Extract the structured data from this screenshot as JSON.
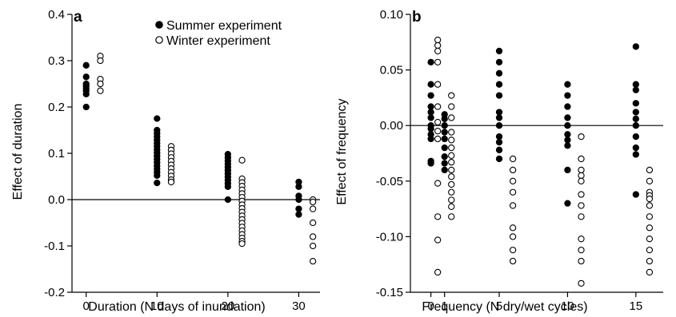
{
  "chart_data": [
    {
      "type": "scatter",
      "panel": "a",
      "xlabel": "Duration (N days of inundation)",
      "ylabel": "Effect of duration",
      "xlim": [
        -2,
        33
      ],
      "ylim": [
        -0.2,
        0.4
      ],
      "x_ticks": [
        0,
        10,
        20,
        30
      ],
      "x_tick_labels": [
        "0",
        "10",
        "20",
        "30"
      ],
      "y_ticks": [
        -0.2,
        -0.1,
        0.0,
        0.1,
        0.2,
        0.3,
        0.4
      ],
      "y_tick_labels": [
        "-0.2",
        "-0.1",
        "0.0",
        "0.1",
        "0.2",
        "0.3",
        "0.4"
      ],
      "reference_line_y": 0,
      "legend_position": "top-right",
      "series": [
        {
          "name": "Summer experiment",
          "marker": "filled",
          "points": [
            [
              0,
              0.29
            ],
            [
              0,
              0.265
            ],
            [
              0,
              0.25
            ],
            [
              0,
              0.245
            ],
            [
              0,
              0.24
            ],
            [
              0,
              0.235
            ],
            [
              0,
              0.228
            ],
            [
              0,
              0.2
            ],
            [
              10,
              0.175
            ],
            [
              10,
              0.15
            ],
            [
              10,
              0.143
            ],
            [
              10,
              0.136
            ],
            [
              10,
              0.129
            ],
            [
              10,
              0.122
            ],
            [
              10,
              0.115
            ],
            [
              10,
              0.108
            ],
            [
              10,
              0.101
            ],
            [
              10,
              0.094
            ],
            [
              10,
              0.087
            ],
            [
              10,
              0.08
            ],
            [
              10,
              0.073
            ],
            [
              10,
              0.066
            ],
            [
              10,
              0.059
            ],
            [
              10,
              0.052
            ],
            [
              10,
              0.036
            ],
            [
              20,
              0.098
            ],
            [
              20,
              0.091
            ],
            [
              20,
              0.084
            ],
            [
              20,
              0.077
            ],
            [
              20,
              0.07
            ],
            [
              20,
              0.063
            ],
            [
              20,
              0.056
            ],
            [
              20,
              0.049
            ],
            [
              20,
              0.042
            ],
            [
              20,
              0.035
            ],
            [
              20,
              0.028
            ],
            [
              20,
              0.0
            ],
            [
              30,
              0.038
            ],
            [
              30,
              0.028
            ],
            [
              30,
              0.008
            ],
            [
              30,
              0.0
            ],
            [
              30,
              -0.02
            ],
            [
              30,
              -0.032
            ]
          ]
        },
        {
          "name": "Winter experiment",
          "marker": "open",
          "points": [
            [
              2,
              0.31
            ],
            [
              2,
              0.3
            ],
            [
              2,
              0.26
            ],
            [
              2,
              0.25
            ],
            [
              2,
              0.235
            ],
            [
              12,
              0.115
            ],
            [
              12,
              0.107
            ],
            [
              12,
              0.099
            ],
            [
              12,
              0.091
            ],
            [
              12,
              0.083
            ],
            [
              12,
              0.075
            ],
            [
              12,
              0.067
            ],
            [
              12,
              0.059
            ],
            [
              12,
              0.051
            ],
            [
              12,
              0.043
            ],
            [
              12,
              0.038
            ],
            [
              22,
              0.085
            ],
            [
              22,
              0.045
            ],
            [
              22,
              0.037
            ],
            [
              22,
              0.029
            ],
            [
              22,
              0.021
            ],
            [
              22,
              0.013
            ],
            [
              22,
              0.005
            ],
            [
              22,
              -0.003
            ],
            [
              22,
              -0.011
            ],
            [
              22,
              -0.019
            ],
            [
              22,
              -0.027
            ],
            [
              22,
              -0.035
            ],
            [
              22,
              -0.043
            ],
            [
              22,
              -0.051
            ],
            [
              22,
              -0.059
            ],
            [
              22,
              -0.067
            ],
            [
              22,
              -0.075
            ],
            [
              22,
              -0.083
            ],
            [
              22,
              -0.09
            ],
            [
              22,
              -0.095
            ],
            [
              32,
              0.0
            ],
            [
              32,
              -0.005
            ],
            [
              32,
              -0.02
            ],
            [
              32,
              -0.05
            ],
            [
              32,
              -0.08
            ],
            [
              32,
              -0.1
            ],
            [
              32,
              -0.133
            ]
          ]
        }
      ]
    },
    {
      "type": "scatter",
      "panel": "b",
      "xlabel": "Frequency (N dry/wet cycles)",
      "ylabel": "Effect of frequency",
      "xlim": [
        -1.5,
        17
      ],
      "ylim": [
        -0.15,
        0.1
      ],
      "x_ticks": [
        0,
        1,
        5,
        10,
        15
      ],
      "x_tick_labels": [
        "0",
        "1",
        "5",
        "10",
        "15"
      ],
      "y_ticks": [
        -0.15,
        -0.1,
        -0.05,
        0.0,
        0.05,
        0.1
      ],
      "y_tick_labels": [
        "-0.15",
        "-0.10",
        "-0.05",
        "0.00",
        "0.05",
        "0.10"
      ],
      "reference_line_y": 0,
      "series": [
        {
          "name": "Summer experiment",
          "marker": "filled",
          "points": [
            [
              0,
              0.057
            ],
            [
              0,
              0.037
            ],
            [
              0,
              0.027
            ],
            [
              0,
              0.017
            ],
            [
              0,
              0.012
            ],
            [
              0,
              0.007
            ],
            [
              0,
              0.0
            ],
            [
              0,
              -0.003
            ],
            [
              0,
              -0.008
            ],
            [
              0,
              -0.012
            ],
            [
              0,
              -0.032
            ],
            [
              0,
              -0.034
            ],
            [
              1,
              0.01
            ],
            [
              1,
              0.006
            ],
            [
              1,
              0.0
            ],
            [
              1,
              -0.006
            ],
            [
              1,
              -0.012
            ],
            [
              1,
              -0.02
            ],
            [
              1,
              -0.028
            ],
            [
              1,
              -0.034
            ],
            [
              1,
              -0.04
            ],
            [
              5,
              0.067
            ],
            [
              5,
              0.057
            ],
            [
              5,
              0.047
            ],
            [
              5,
              0.037
            ],
            [
              5,
              0.027
            ],
            [
              5,
              0.012
            ],
            [
              5,
              0.007
            ],
            [
              5,
              0.0
            ],
            [
              5,
              -0.01
            ],
            [
              5,
              -0.015
            ],
            [
              5,
              -0.022
            ],
            [
              5,
              -0.03
            ],
            [
              10,
              0.037
            ],
            [
              10,
              0.027
            ],
            [
              10,
              0.017
            ],
            [
              10,
              0.007
            ],
            [
              10,
              0.0
            ],
            [
              10,
              -0.008
            ],
            [
              10,
              -0.013
            ],
            [
              10,
              -0.018
            ],
            [
              10,
              -0.04
            ],
            [
              10,
              -0.07
            ],
            [
              15,
              0.071
            ],
            [
              15,
              0.037
            ],
            [
              15,
              0.032
            ],
            [
              15,
              0.02
            ],
            [
              15,
              0.012
            ],
            [
              15,
              0.006
            ],
            [
              15,
              0.0
            ],
            [
              15,
              -0.01
            ],
            [
              15,
              -0.02
            ],
            [
              15,
              -0.026
            ],
            [
              15,
              -0.062
            ]
          ]
        },
        {
          "name": "Winter experiment",
          "marker": "open",
          "points": [
            [
              0.5,
              0.077
            ],
            [
              0.5,
              0.072
            ],
            [
              0.5,
              0.067
            ],
            [
              0.5,
              0.057
            ],
            [
              0.5,
              0.037
            ],
            [
              0.5,
              0.017
            ],
            [
              0.5,
              0.003
            ],
            [
              0.5,
              -0.005
            ],
            [
              0.5,
              -0.012
            ],
            [
              0.5,
              -0.052
            ],
            [
              0.5,
              -0.082
            ],
            [
              0.5,
              -0.103
            ],
            [
              0.5,
              -0.132
            ],
            [
              1.5,
              0.027
            ],
            [
              1.5,
              0.017
            ],
            [
              1.5,
              0.007
            ],
            [
              1.5,
              -0.006
            ],
            [
              1.5,
              -0.013
            ],
            [
              1.5,
              -0.02
            ],
            [
              1.5,
              -0.027
            ],
            [
              1.5,
              -0.033
            ],
            [
              1.5,
              -0.04
            ],
            [
              1.5,
              -0.046
            ],
            [
              1.5,
              -0.053
            ],
            [
              1.5,
              -0.06
            ],
            [
              1.5,
              -0.067
            ],
            [
              1.5,
              -0.073
            ],
            [
              1.5,
              -0.082
            ],
            [
              6,
              -0.03
            ],
            [
              6,
              -0.04
            ],
            [
              6,
              -0.05
            ],
            [
              6,
              -0.06
            ],
            [
              6,
              -0.072
            ],
            [
              6,
              -0.092
            ],
            [
              6,
              -0.1
            ],
            [
              6,
              -0.112
            ],
            [
              6,
              -0.122
            ],
            [
              11,
              -0.01
            ],
            [
              11,
              -0.03
            ],
            [
              11,
              -0.04
            ],
            [
              11,
              -0.045
            ],
            [
              11,
              -0.05
            ],
            [
              11,
              -0.062
            ],
            [
              11,
              -0.072
            ],
            [
              11,
              -0.082
            ],
            [
              11,
              -0.102
            ],
            [
              11,
              -0.112
            ],
            [
              11,
              -0.122
            ],
            [
              11,
              -0.142
            ],
            [
              16,
              -0.04
            ],
            [
              16,
              -0.05
            ],
            [
              16,
              -0.06
            ],
            [
              16,
              -0.063
            ],
            [
              16,
              -0.066
            ],
            [
              16,
              -0.072
            ],
            [
              16,
              -0.082
            ],
            [
              16,
              -0.092
            ],
            [
              16,
              -0.102
            ],
            [
              16,
              -0.112
            ],
            [
              16,
              -0.122
            ],
            [
              16,
              -0.132
            ]
          ]
        }
      ]
    }
  ]
}
